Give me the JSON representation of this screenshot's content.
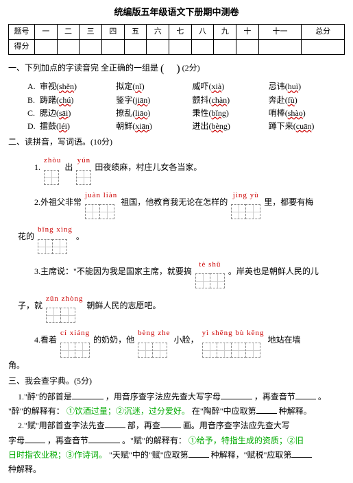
{
  "title": "统编版五年级语文下册期中测卷",
  "table": {
    "row1": [
      "题号",
      "一",
      "二",
      "三",
      "四",
      "五",
      "六",
      "七",
      "八",
      "九",
      "十",
      "十一",
      "总分"
    ],
    "row2_label": "得分"
  },
  "q1": {
    "stem_a": "一、下列加点的字读音完  全正确的一组是",
    "stem_b": "(2分)",
    "rows": [
      {
        "lead": "A.",
        "items": [
          "审视(<span class='wavy'>shěn</span>)",
          "拟定(<span class='wavy'>nǐ</span>)",
          "威吓(<span class='wavy'>xià</span>)",
          "忌讳(<span class='wavy'>huì</span>)"
        ]
      },
      {
        "lead": "B.",
        "items": [
          "踌躇(<span class='wavy'>chú</span>)",
          "鉴字(<span class='wavy'>jiān</span>)",
          "颤抖(<span class='wavy'>chàn</span>)",
          "奔赴(<span class='wavy'>fù</span>)"
        ]
      },
      {
        "lead": "C.",
        "items": [
          "腮边(<span class='wavy'>sāi</span>)",
          "撩乱(<span class='wavy'>liāo</span>)",
          "秉性(<span class='wavy'>bǐng</span>)",
          "哨棒(<span class='wavy'>shào</span>)"
        ]
      },
      {
        "lead": "D.",
        "items": [
          "擂鼓(<span class='wavy'>léi</span>)",
          "朝鲜(<span class='wavy'>xiān</span>)",
          "迸出(<span class='wavy'>bèng</span>)",
          "蹲下来(<span class='wavy'>cuān</span>)"
        ]
      }
    ]
  },
  "q2": {
    "header": "二、读拼音，写词语。(10分)",
    "s1": {
      "pre": "1.",
      "p1": "zhòu",
      "n1": 1,
      "mid1": "出",
      "p2": "yún",
      "n2": 1,
      "tail": "田夜绩麻，村庄儿女各当家。"
    },
    "s2": {
      "pre": "2.外祖父非常",
      "p1": "juàn liàn",
      "n1": 2,
      "mid1": "祖国，他教育我无论在怎样的",
      "p2": "jìng  yù",
      "n2": 2,
      "tail": "里，都要有梅"
    },
    "s2b": {
      "pre": "花的",
      "p1": "bǐng xìng",
      "n1": 2,
      "tail": "。"
    },
    "s3": {
      "pre": "3.主席说：\"不能因为我是国家主席，就要搞",
      "p1": "tè  shū",
      "n1": 2,
      "tail": "。岸英也是朝鲜人民的儿"
    },
    "s3b": {
      "pre": "子，就",
      "p1": "zūn zhòng",
      "n1": 2,
      "tail": "朝鲜人民的志愿吧。"
    },
    "s4": {
      "pre": "4.看着",
      "p1": "cí xiáng",
      "n1": 2,
      "mid1": "的奶奶，他",
      "p2": "bèng  zhe",
      "n2": 2,
      "mid2": "小脸，",
      "p3": "yì  shēng  bù  kēng",
      "n3": 4,
      "tail": "地站在墙"
    },
    "s4b": "角。"
  },
  "q3": {
    "header": "三、我会查字典。(5分)",
    "l1a": "1.\"醉\"的部首是",
    "l1b": "，用音序查字法应先查大写字母",
    "l1c": "，再查音节",
    "l1d": "。",
    "l2a": "\"醉\"的解释有：",
    "l2b": "①饮酒过量；②沉迷，过分爱好。",
    "l2c": "在\"陶醉\"中应取第",
    "l2d": "种解释。",
    "l3a": "2.\"赋\"用部首查字法先查",
    "l3b": "部，再查",
    "l3c": "画。用音序查字法应先查大写",
    "l4a": "字母",
    "l4b": "，再查音节",
    "l4c": "。\"赋\"的解释有：",
    "l4d": "①给予，特指生成的资质；②旧",
    "l5a": "日时指农业税；③作诗词。",
    "l5b": "\"天赋\"中的\"赋\"应取第",
    "l5c": " 种解释，\"赋税\"应取第",
    "l6": "种解释。"
  }
}
